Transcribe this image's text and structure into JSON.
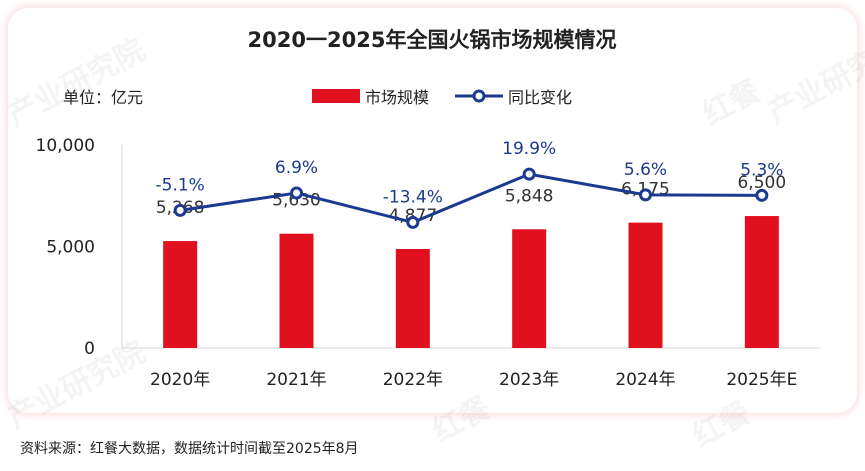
{
  "watermarks": [
    "产业研究院",
    "红餐",
    "产业研究院",
    "红餐",
    "产业研究院",
    "红餐"
  ],
  "chart_data": {
    "type": "bar",
    "title": "2020一2025年全国火锅市场规模情况",
    "unit_label": "单位：亿元",
    "categories": [
      "2020年",
      "2021年",
      "2022年",
      "2023年",
      "2024年",
      "2025年E"
    ],
    "series": [
      {
        "name": "市场规模",
        "type": "bar",
        "color": "#e0101e",
        "values": [
          5268,
          5630,
          4877,
          5848,
          6175,
          6500
        ],
        "labels": [
          "5,268",
          "5,630",
          "4,877",
          "5,848",
          "6,175",
          "6,500"
        ]
      },
      {
        "name": "同比变化",
        "type": "line",
        "color": "#1a3a8f",
        "values": [
          -5.1,
          6.9,
          -13.4,
          19.9,
          5.6,
          5.3
        ],
        "labels": [
          "-5.1%",
          "6.9%",
          "-13.4%",
          "19.9%",
          "5.6%",
          "5.3%"
        ]
      }
    ],
    "ylim": [
      0,
      10000
    ],
    "yticks": [
      0,
      5000,
      10000
    ],
    "ytick_labels": [
      "0",
      "5,000",
      "10,000"
    ],
    "y2lim": [
      -100,
      40
    ],
    "legend_position": "top",
    "grid": false
  },
  "source": "资料来源：红餐大数据，数据统计时间截至2025年8月"
}
